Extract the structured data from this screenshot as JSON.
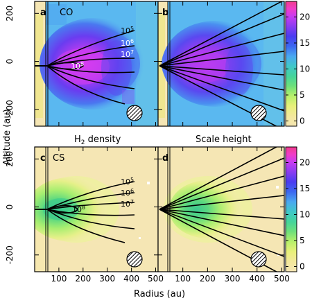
{
  "figure": {
    "top_titles": [
      "H",
      "2",
      " density",
      "Scale height"
    ],
    "xlabel": "Radius (au)",
    "ylabel": "Altitude (au)"
  },
  "chart_data": [
    {
      "type": "heatmap",
      "panel": "a",
      "molecule": "CO",
      "xlim": [
        0,
        510
      ],
      "ylim": [
        -270,
        250
      ],
      "xticks": [],
      "yticks": [
        200,
        0,
        -200
      ],
      "contour_family": "H2 density",
      "contour_labels": [
        "10",
        "5",
        "10",
        "6",
        "10",
        "7",
        "10",
        "8"
      ],
      "colorbar": {
        "range": [
          -1,
          23
        ],
        "ticks": [
          0,
          5,
          10,
          15,
          20
        ]
      }
    },
    {
      "type": "heatmap",
      "panel": "b",
      "molecule": "",
      "xlim": [
        0,
        510
      ],
      "ylim": [
        -270,
        250
      ],
      "contour_family": "Scale height",
      "colorbar": {
        "range": [
          -1,
          23
        ],
        "ticks": [
          0,
          5,
          10,
          15,
          20
        ]
      }
    },
    {
      "type": "heatmap",
      "panel": "c",
      "molecule": "CS",
      "xlim": [
        0,
        510
      ],
      "ylim": [
        -270,
        250
      ],
      "xticks": [
        100,
        200,
        300,
        400,
        500
      ],
      "yticks": [
        200,
        0,
        -200
      ],
      "contour_family": "H2 density",
      "contour_labels": [
        "10",
        "5",
        "10",
        "6",
        "10",
        "7",
        "10",
        "8"
      ],
      "colorbar": {
        "range": [
          -1,
          23
        ],
        "ticks": [
          0,
          5,
          10,
          15,
          20
        ]
      }
    },
    {
      "type": "heatmap",
      "panel": "d",
      "molecule": "",
      "xlim": [
        0,
        510
      ],
      "ylim": [
        -270,
        250
      ],
      "xticks": [
        100,
        200,
        300,
        400,
        500
      ],
      "contour_family": "Scale height",
      "colorbar": {
        "range": [
          -1,
          23
        ],
        "ticks": [
          0,
          5,
          10,
          15,
          20
        ]
      }
    }
  ]
}
